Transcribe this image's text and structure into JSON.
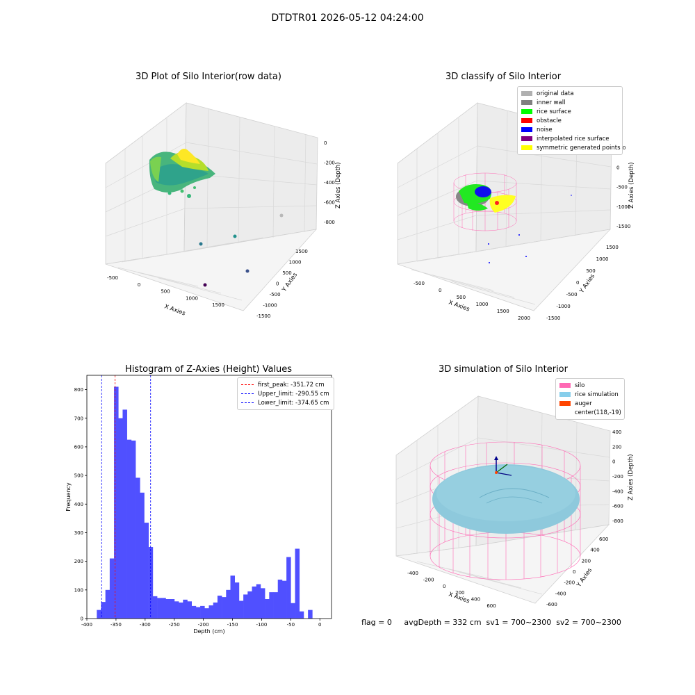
{
  "suptitle": "DTDTR01 2026-05-12 04:24:00",
  "panels": {
    "raw": {
      "title": "3D Plot of Silo Interior(row data)",
      "xlabel": "X Axies",
      "ylabel": "Y Axies",
      "zlabel": "Z Axies (Depth)",
      "xticks": [
        "-500",
        "0",
        "500",
        "1000",
        "1500"
      ],
      "yticks": [
        "-1500",
        "-1000",
        "-500",
        "0",
        "500",
        "1000",
        "1500"
      ],
      "zticks": [
        "0",
        "-200",
        "-400",
        "-600",
        "-800"
      ]
    },
    "classify": {
      "title": "3D classify of Silo Interior",
      "xlabel": "X Axies",
      "ylabel": "Y Axies",
      "zlabel": "Z Axies (Depth)",
      "xticks": [
        "-500",
        "0",
        "500",
        "1000",
        "1500",
        "2000"
      ],
      "yticks": [
        "-1500",
        "-1000",
        "-500",
        "0",
        "500",
        "1000",
        "1500"
      ],
      "zticks": [
        "500",
        "0",
        "-500",
        "-1000",
        "-1500"
      ],
      "legend": [
        {
          "label": "original data",
          "color": "#b0b0b0"
        },
        {
          "label": "inner wall",
          "color": "#808080"
        },
        {
          "label": "rice surface",
          "color": "#00ff00"
        },
        {
          "label": "obstacle",
          "color": "#ff0000"
        },
        {
          "label": "noise",
          "color": "#0000ff"
        },
        {
          "label": "interpolated rice surface",
          "color": "#800080"
        },
        {
          "label": "symmetric generated points",
          "color": "#ffff00"
        }
      ]
    },
    "simulation": {
      "title": "3D simulation of Silo Interior",
      "xlabel": "X Axies",
      "ylabel": "Y Axies",
      "zlabel": "Z Axies (Depth)",
      "xticks": [
        "-400",
        "-200",
        "0",
        "200",
        "400",
        "600"
      ],
      "yticks": [
        "-600",
        "-400",
        "-200",
        "0",
        "200",
        "400",
        "600"
      ],
      "zticks": [
        "400",
        "200",
        "0",
        "-200",
        "-400",
        "-600",
        "-800"
      ],
      "legend": [
        {
          "label": "silo",
          "color": "#ff69b4"
        },
        {
          "label": "rice simulation",
          "color": "#87ceeb"
        },
        {
          "label": "auger",
          "color": "#ff4500"
        },
        {
          "label": "center(118,-19)",
          "color": ""
        }
      ]
    }
  },
  "chart_data": {
    "type": "bar",
    "title": "Histogram of Z-Axies (Height) Values",
    "xlabel": "Depth (cm)",
    "ylabel": "Frequency",
    "xlim": [
      -400,
      20
    ],
    "ylim": [
      0,
      850
    ],
    "xticks": [
      -400,
      -350,
      -300,
      -250,
      -200,
      -150,
      -100,
      -50,
      0
    ],
    "yticks": [
      0,
      100,
      200,
      300,
      400,
      500,
      600,
      700,
      800
    ],
    "bar_color": "#5050ff",
    "bins_start": -383,
    "bin_width": 7.4,
    "values": [
      30,
      58,
      100,
      210,
      810,
      700,
      730,
      625,
      622,
      492,
      440,
      335,
      250,
      78,
      72,
      72,
      68,
      68,
      60,
      56,
      66,
      60,
      44,
      40,
      44,
      36,
      46,
      56,
      80,
      75,
      100,
      150,
      126,
      62,
      84,
      95,
      112,
      120,
      106,
      68,
      92,
      92,
      136,
      132,
      215,
      54,
      244,
      25,
      0,
      30
    ],
    "lines": [
      {
        "label": "first_peak: -351.72 cm",
        "x": -351.72,
        "color": "#ff0000"
      },
      {
        "label": "Upper_limit: -290.55 cm",
        "x": -290.55,
        "color": "#0000ff"
      },
      {
        "label": "Lower_limit: -374.65 cm",
        "x": -374.65,
        "color": "#0000ff"
      }
    ],
    "legend_position": "top-right"
  },
  "footer": {
    "text": "flag = 0     avgDepth = 332 cm  sv1 = 700~2300  sv2 = 700~2300"
  }
}
